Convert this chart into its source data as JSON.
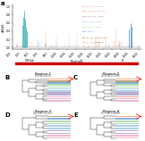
{
  "panel_a": {
    "ylabel": "dN/dS",
    "xlabel": "Position",
    "ylim": [
      -0.3,
      1.0
    ],
    "xlim": [
      1000,
      29500
    ],
    "yticks": [
      0.0,
      0.2,
      0.4,
      0.6,
      0.8,
      1.0
    ],
    "series_colors": [
      "#E87EAC",
      "#E05C3A",
      "#8B6BB1",
      "#6AAED6",
      "#74C476",
      "#2171B5",
      "#8C510A",
      "#F16913"
    ],
    "legend_labels": [
      "Bat_Gc_CoV1_RaTG13",
      "Pang_Gc_CoV1_GD_P2S",
      "Pang_Gc_CoV1_GXP3S",
      "Bat_Sc_CoV1_ZXC21",
      "Bat_Sc_CoV1_ZC45",
      "SARS-CoV-2",
      "Bat_Sc_CoV_Yunnan_KP1",
      "Bat_Sc_CoV_WuHan31"
    ]
  },
  "genome_bar_color": "#CC0000",
  "panel_info": [
    {
      "letter": "B",
      "label": "Region 1",
      "sublabel": "(2650-2450)"
    },
    {
      "letter": "C",
      "label": "Region 2",
      "sublabel": "(12674-21988)"
    },
    {
      "letter": "D",
      "label": "Region 3",
      "sublabel": "(14745-15245)"
    },
    {
      "letter": "E",
      "label": "Region 4",
      "sublabel": "(27738-29868)"
    }
  ],
  "tip_colors_B": [
    "#E87EAC",
    "#E87EAC",
    "#E87EAC",
    "#8B6BB1",
    "#8B6BB1",
    "#6AAED6",
    "#74C476",
    "#74C476",
    "#2171B5",
    "#8C510A",
    "#F16913"
  ],
  "tip_colors_C": [
    "#E87EAC",
    "#E87EAC",
    "#E87EAC",
    "#8B6BB1",
    "#8B6BB1",
    "#6AAED6",
    "#74C476",
    "#74C476",
    "#2171B5",
    "#8C510A",
    "#F16913"
  ],
  "tip_colors_D": [
    "#E87EAC",
    "#E87EAC",
    "#8B6BB1",
    "#6AAED6",
    "#74C476",
    "#2171B5",
    "#8C510A",
    "#F16913"
  ],
  "tip_colors_E": [
    "#E87EAC",
    "#E05C3A",
    "#8B6BB1",
    "#6AAED6",
    "#74C476",
    "#2171B5",
    "#8C510A",
    "#F16913"
  ],
  "background_color": "#FFFFFF"
}
